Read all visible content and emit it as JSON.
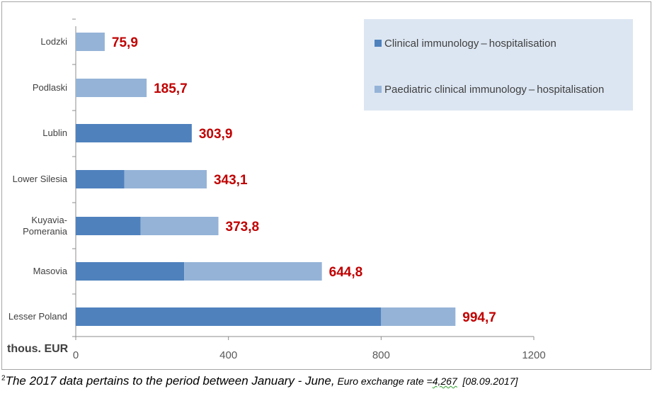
{
  "chart_data": {
    "type": "bar",
    "orientation": "horizontal",
    "stacked": true,
    "categories": [
      "Lodzki",
      "Podlaski",
      "Lublin",
      "Lower Silesia",
      "Kuyavia-Pomerania",
      "Masovia",
      "Lesser Poland"
    ],
    "category_lines": [
      [
        "Lodzki"
      ],
      [
        "Podlaski"
      ],
      [
        "Lublin"
      ],
      [
        "Lower Silesia"
      ],
      [
        "Kuyavia-",
        "Pomerania"
      ],
      [
        "Masovia"
      ],
      [
        "Lesser Poland"
      ]
    ],
    "series": [
      {
        "name": "Clinical immunology – hospitalisation",
        "color": "#4f81bd",
        "values": [
          0,
          0,
          303.9,
          127,
          170,
          284,
          800
        ]
      },
      {
        "name": "Paediatric clinical immunology – hospitalisation",
        "color": "#95b3d7",
        "values": [
          75.9,
          185.7,
          0,
          216.1,
          203.8,
          360.8,
          194.7
        ]
      }
    ],
    "totals": [
      75.9,
      185.7,
      303.9,
      343.1,
      373.8,
      644.8,
      994.7
    ],
    "total_labels": [
      "75,9",
      "185,7",
      "303,9",
      "343,1",
      "373,8",
      "644,8",
      "994,7"
    ],
    "total_label_color": "#c00000",
    "xlim": [
      0,
      1200
    ],
    "xticks": [
      0,
      400,
      800,
      1200
    ],
    "xtick_labels": [
      "0",
      "400",
      "800",
      "1200"
    ],
    "unit_label": "thous. EUR",
    "legend_position": "top-right",
    "legend_background": "#dce6f2",
    "grid": false
  },
  "footnote": {
    "marker": "2",
    "main": "The 2017 data pertains to the period between January - June,",
    "secondary_prefix": "Euro exchange rate =",
    "rate": "4,267",
    "secondary_suffix": "  [08.09.2017]"
  }
}
